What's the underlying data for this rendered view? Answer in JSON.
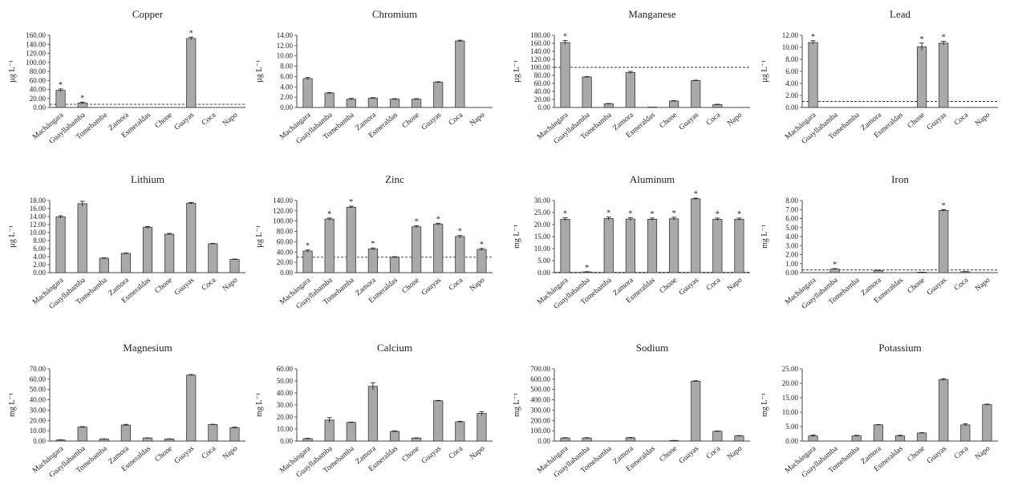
{
  "chart_data": [
    {
      "type": "bar",
      "title": "Copper",
      "ylabel": "µg L⁻¹",
      "ylim": [
        0,
        160
      ],
      "ytick_step": 20,
      "decimals": 2,
      "categories": [
        "Machángara",
        "Guayllabamba",
        "Tomebamba",
        "Zamora",
        "Esmeraldas",
        "Chone",
        "Guayas",
        "Coca",
        "Napo"
      ],
      "values": [
        38,
        10,
        0,
        0,
        0,
        0,
        153,
        0,
        0
      ],
      "errors": [
        3,
        2,
        0,
        0,
        0,
        0,
        3,
        0,
        0
      ],
      "significant": [
        true,
        true,
        false,
        false,
        false,
        false,
        true,
        false,
        false
      ],
      "reference_line": 7
    },
    {
      "type": "bar",
      "title": "Chromium",
      "ylabel": "µg L⁻¹",
      "ylim": [
        0,
        14
      ],
      "ytick_step": 2,
      "decimals": 2,
      "categories": [
        "Machángara",
        "Guayllabamba",
        "Tomebamba",
        "Zamora",
        "Esmeraldas",
        "Chone",
        "Guayas",
        "Coca",
        "Napo"
      ],
      "values": [
        5.6,
        2.8,
        1.6,
        1.8,
        1.6,
        1.6,
        4.9,
        12.9,
        0
      ],
      "errors": [
        0.2,
        0.1,
        0.15,
        0.1,
        0.1,
        0.1,
        0.1,
        0.15,
        0
      ],
      "significant": [
        false,
        false,
        false,
        false,
        false,
        false,
        false,
        false,
        false
      ],
      "reference_line": null
    },
    {
      "type": "bar",
      "title": "Manganese",
      "ylabel": "µg L⁻¹",
      "ylim": [
        0,
        180
      ],
      "ytick_step": 20,
      "decimals": 2,
      "categories": [
        "Machángara",
        "Guayllabamba",
        "Tomebamba",
        "Zamora",
        "Esmeraldas",
        "Chone",
        "Guayas",
        "Coca",
        "Napo"
      ],
      "values": [
        162,
        76,
        9,
        87,
        1,
        16,
        67,
        7,
        0
      ],
      "errors": [
        5,
        1,
        1,
        3,
        0,
        1,
        1,
        1,
        0
      ],
      "significant": [
        true,
        false,
        false,
        false,
        false,
        false,
        false,
        false,
        false
      ],
      "reference_line": 100
    },
    {
      "type": "bar",
      "title": "Lead",
      "ylabel": "µg L⁻¹",
      "ylim": [
        0,
        12
      ],
      "ytick_step": 2,
      "decimals": 2,
      "categories": [
        "Machángara",
        "Guayllabamba",
        "Tomebamba",
        "Zamora",
        "Esmeraldas",
        "Chone",
        "Guayas",
        "Coca",
        "Napo"
      ],
      "values": [
        10.8,
        0,
        0,
        0,
        0,
        10.1,
        10.7,
        0,
        0
      ],
      "errors": [
        0.3,
        0,
        0,
        0,
        0,
        0.6,
        0.3,
        0,
        0
      ],
      "significant": [
        true,
        false,
        false,
        false,
        false,
        true,
        true,
        false,
        false
      ],
      "reference_line": 1
    },
    {
      "type": "bar",
      "title": "Lithium",
      "ylabel": "µg L⁻¹",
      "ylim": [
        0,
        18
      ],
      "ytick_step": 2,
      "decimals": 2,
      "categories": [
        "Machángara",
        "Guayllabamba",
        "Tomebamba",
        "Zamora",
        "Esmeraldas",
        "Chone",
        "Guayas",
        "Coca",
        "Napo"
      ],
      "values": [
        13.9,
        17.2,
        3.6,
        4.8,
        11.3,
        9.6,
        17.3,
        7.2,
        3.3
      ],
      "errors": [
        0.3,
        0.6,
        0.1,
        0.1,
        0.2,
        0.2,
        0.2,
        0.1,
        0.1
      ],
      "significant": [
        false,
        false,
        false,
        false,
        false,
        false,
        false,
        false,
        false
      ],
      "reference_line": null
    },
    {
      "type": "bar",
      "title": "Zinc",
      "ylabel": "µg L⁻¹",
      "ylim": [
        0,
        140
      ],
      "ytick_step": 20,
      "decimals": 2,
      "categories": [
        "Machángara",
        "Guayllabamba",
        "Tomebamba",
        "Zamora",
        "Esmeraldas",
        "Chone",
        "Guayas",
        "Coca",
        "Napo"
      ],
      "values": [
        42,
        104,
        127,
        46,
        30,
        89,
        94,
        70,
        45
      ],
      "errors": [
        2,
        2,
        2,
        2,
        1,
        2,
        2,
        2,
        2
      ],
      "significant": [
        true,
        true,
        true,
        true,
        false,
        true,
        true,
        true,
        true
      ],
      "reference_line": 30
    },
    {
      "type": "bar",
      "title": "Aluminum",
      "ylabel": "mg L⁻¹",
      "ylim": [
        0,
        30
      ],
      "ytick_step": 5,
      "decimals": 2,
      "categories": [
        "Machángara",
        "Guayllabamba",
        "Tomebamba",
        "Zamora",
        "Esmeraldas",
        "Chone",
        "Guayas",
        "Coca",
        "Napo"
      ],
      "values": [
        22.2,
        0.3,
        22.5,
        22.3,
        22.2,
        22.4,
        30.7,
        22.2,
        22.2
      ],
      "errors": [
        0.6,
        0.1,
        0.6,
        0.6,
        0.5,
        0.6,
        0.3,
        0.5,
        0.5
      ],
      "significant": [
        true,
        true,
        true,
        true,
        true,
        true,
        true,
        true,
        true
      ],
      "reference_line": 0.2
    },
    {
      "type": "bar",
      "title": "Iron",
      "ylabel": "mg L⁻¹",
      "ylim": [
        0,
        8
      ],
      "ytick_step": 1,
      "decimals": 2,
      "categories": [
        "Machángara",
        "Guayllabamba",
        "Tomebamba",
        "Zamora",
        "Esmeraldas",
        "Chone",
        "Guayas",
        "Coca",
        "Napo"
      ],
      "values": [
        0,
        0.4,
        0,
        0.25,
        0,
        0.05,
        6.9,
        0.1,
        0
      ],
      "errors": [
        0,
        0.05,
        0,
        0.03,
        0,
        0.01,
        0.1,
        0.02,
        0
      ],
      "significant": [
        false,
        true,
        false,
        false,
        false,
        false,
        true,
        false,
        false
      ],
      "reference_line": 0.3
    },
    {
      "type": "bar",
      "title": "Magnesium",
      "ylabel": "mg L⁻¹",
      "ylim": [
        0,
        70
      ],
      "ytick_step": 10,
      "decimals": 2,
      "categories": [
        "Machángara",
        "Guayllabamba",
        "Tomebamba",
        "Zamora",
        "Esmeraldas",
        "Chone",
        "Guayas",
        "Coca",
        "Napo"
      ],
      "values": [
        1,
        13.5,
        2,
        15.5,
        3,
        2,
        64,
        16,
        13
      ],
      "errors": [
        0.2,
        0.5,
        0.2,
        0.7,
        0.2,
        0.2,
        0.5,
        0.3,
        0.5
      ],
      "significant": [
        false,
        false,
        false,
        false,
        false,
        false,
        false,
        false,
        false
      ],
      "reference_line": null
    },
    {
      "type": "bar",
      "title": "Calcium",
      "ylabel": "mg L⁻¹",
      "ylim": [
        0,
        60
      ],
      "ytick_step": 10,
      "decimals": 2,
      "categories": [
        "Machángara",
        "Guayllabamba",
        "Tomebamba",
        "Zamora",
        "Esmeraldas",
        "Chone",
        "Guayas",
        "Coca",
        "Napo"
      ],
      "values": [
        2,
        17.5,
        15.5,
        45.5,
        8,
        2.5,
        33.5,
        16,
        23
      ],
      "errors": [
        0.3,
        2,
        0.3,
        3,
        0.5,
        0.2,
        0.3,
        0.5,
        1.5
      ],
      "significant": [
        false,
        false,
        false,
        false,
        false,
        false,
        false,
        false,
        false
      ],
      "reference_line": null
    },
    {
      "type": "bar",
      "title": "Sodium",
      "ylabel": "mg L⁻¹",
      "ylim": [
        0,
        700
      ],
      "ytick_step": 100,
      "decimals": 2,
      "categories": [
        "Machángara",
        "Guayllabamba",
        "Tomebamba",
        "Zamora",
        "Esmeraldas",
        "Chone",
        "Guayas",
        "Coca",
        "Napo"
      ],
      "values": [
        30,
        30,
        0,
        32,
        0,
        5,
        580,
        95,
        50
      ],
      "errors": [
        3,
        3,
        0,
        3,
        0,
        1,
        5,
        3,
        3
      ],
      "significant": [
        false,
        false,
        false,
        false,
        false,
        false,
        false,
        false,
        false
      ],
      "reference_line": null
    },
    {
      "type": "bar",
      "title": "Potassium",
      "ylabel": "mg L⁻¹",
      "ylim": [
        0,
        25
      ],
      "ytick_step": 5,
      "decimals": 2,
      "categories": [
        "Machángara",
        "Guayllabamba",
        "Tomebamba",
        "Zamora",
        "Esmeraldas",
        "Chone",
        "Guayas",
        "Coca",
        "Napo"
      ],
      "values": [
        1.8,
        0,
        1.8,
        5.6,
        1.8,
        2.8,
        21.3,
        5.6,
        12.6
      ],
      "errors": [
        0.3,
        0,
        0.2,
        0.1,
        0.2,
        0.1,
        0.3,
        0.4,
        0.2
      ],
      "significant": [
        false,
        false,
        false,
        false,
        false,
        false,
        false,
        false,
        false
      ],
      "reference_line": null
    }
  ],
  "marker_symbol": "*",
  "colors": {
    "bar_fill": "#a9a9a9",
    "bar_stroke": "#3a3a3a",
    "axis": "#444444",
    "reference_line": "#333333"
  }
}
